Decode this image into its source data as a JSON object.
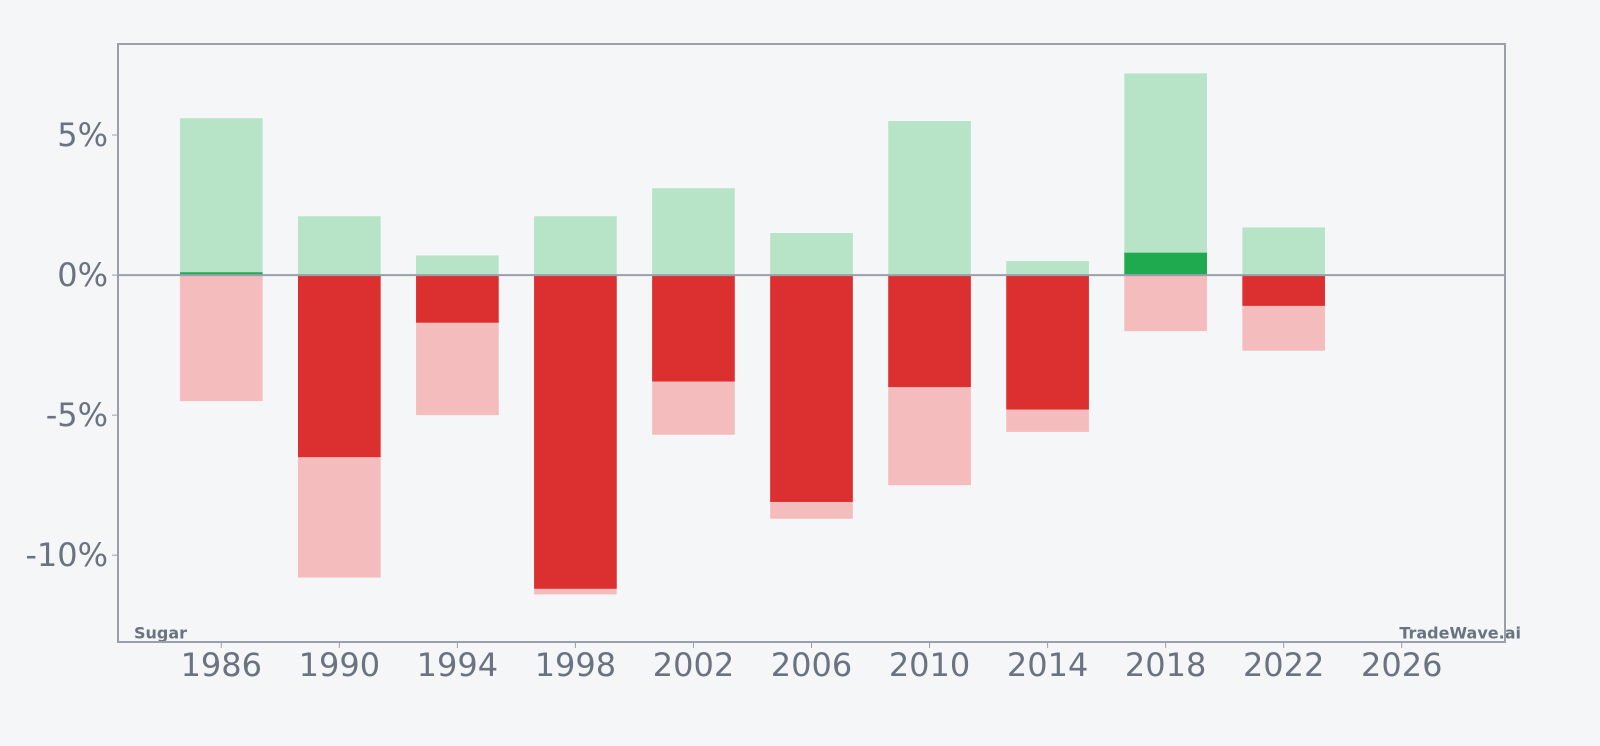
{
  "chart_data": {
    "type": "range_bar",
    "x": [
      1986,
      1990,
      1994,
      1998,
      2002,
      2006,
      2010,
      2014,
      2018,
      2022
    ],
    "series": [
      {
        "color": "#b7e3c7",
        "values": [
          5.6,
          2.1,
          0.7,
          2.1,
          3.1,
          1.5,
          5.5,
          0.5,
          7.2,
          1.7
        ]
      },
      {
        "color": "#f4bcbc",
        "values": [
          -4.5,
          -10.8,
          -5.0,
          -11.4,
          -5.7,
          -8.7,
          -7.5,
          -5.6,
          -2.0,
          -2.7
        ]
      },
      {
        "positive_color": "#1faa50",
        "negative_color": "#dc3030",
        "values": [
          0.1,
          -6.5,
          -1.7,
          -11.2,
          -3.8,
          -8.1,
          -4.0,
          -4.8,
          0.8,
          -1.1
        ]
      }
    ],
    "xlim": [
      1982.5,
      2029.5
    ],
    "xticks": [
      1986,
      1990,
      1994,
      1998,
      2002,
      2006,
      2010,
      2014,
      2018,
      2022,
      2026
    ],
    "ylim": [
      -13.1,
      8.25
    ],
    "yticks": [
      {
        "value": -10,
        "label": "-10%"
      },
      {
        "value": -5,
        "label": "-5%"
      },
      {
        "value": 0,
        "label": "0%"
      },
      {
        "value": 5,
        "label": "5%"
      }
    ],
    "bar_width": 2.8,
    "commodity": "Sugar",
    "watermark": "TradeWave.ai"
  }
}
